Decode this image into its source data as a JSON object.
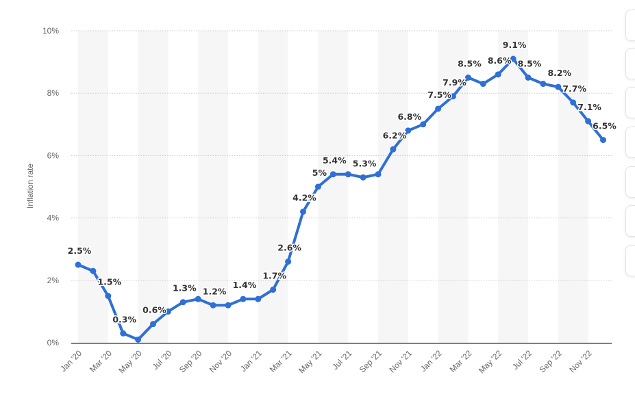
{
  "chart_data": {
    "type": "line",
    "title": "",
    "xlabel": "",
    "ylabel": "Inflation rate",
    "ylim": [
      0,
      10
    ],
    "yticks": [
      "0%",
      "2%",
      "4%",
      "6%",
      "8%",
      "10%"
    ],
    "grid": true,
    "line_color": "#2f6fd6",
    "x": [
      "Jan '20",
      "Feb '20",
      "Mar '20",
      "Apr '20",
      "May '20",
      "Jun '20",
      "Jul '20",
      "Aug '20",
      "Sep '20",
      "Oct '20",
      "Nov '20",
      "Dec '20",
      "Jan '21",
      "Feb '21",
      "Mar '21",
      "Apr '21",
      "May '21",
      "Jun '21",
      "Jul '21",
      "Aug '21",
      "Sep '21",
      "Oct '21",
      "Nov '21",
      "Dec '21",
      "Jan '22",
      "Feb '22",
      "Mar '22",
      "Apr '22",
      "May '22",
      "Jun '22",
      "Jul '22",
      "Aug '22",
      "Sep '22",
      "Oct '22",
      "Nov '22",
      "Dec '22"
    ],
    "xtick_labels": [
      "Jan '20",
      "Mar '20",
      "May '20",
      "Jul '20",
      "Sep '20",
      "Nov '20",
      "Jan '21",
      "Mar '21",
      "May '21",
      "Jul '21",
      "Sep '21",
      "Nov '21",
      "Jan '22",
      "Mar '22",
      "May '22",
      "Jul '22",
      "Sep '22",
      "Nov '22"
    ],
    "values": [
      2.5,
      2.3,
      1.5,
      0.3,
      0.1,
      0.6,
      1.0,
      1.3,
      1.4,
      1.2,
      1.2,
      1.4,
      1.4,
      1.7,
      2.6,
      4.2,
      5.0,
      5.4,
      5.4,
      5.3,
      5.4,
      6.2,
      6.8,
      7.0,
      7.5,
      7.9,
      8.5,
      8.3,
      8.6,
      9.1,
      8.5,
      8.3,
      8.2,
      7.7,
      7.1,
      6.5
    ],
    "data_labels": [
      "2.5%",
      "",
      "1.5%",
      "0.3%",
      "",
      "0.6%",
      "",
      "1.3%",
      "",
      "1.2%",
      "",
      "1.4%",
      "",
      "1.7%",
      "2.6%",
      "4.2%",
      "5%",
      "5.4%",
      "",
      "5.3%",
      "",
      "6.2%",
      "6.8%",
      "",
      "7.5%",
      "7.9%",
      "8.5%",
      "",
      "8.6%",
      "9.1%",
      "8.5%",
      "",
      "8.2%",
      "7.7%",
      "7.1%",
      "6.5%"
    ]
  }
}
